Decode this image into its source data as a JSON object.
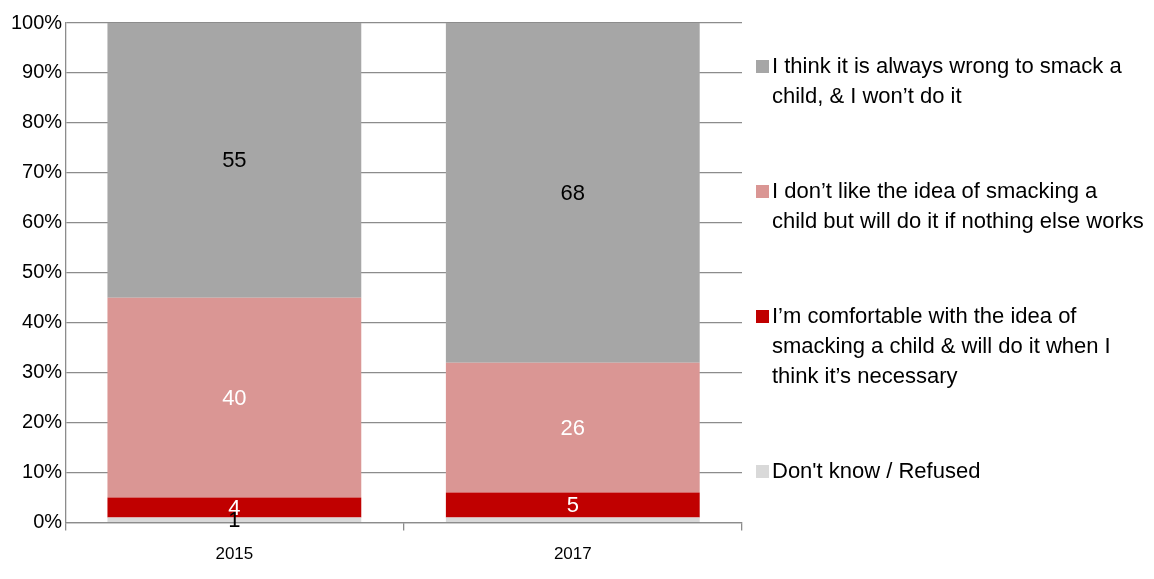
{
  "chart_data": {
    "type": "bar",
    "stacked": true,
    "categories": [
      "2015",
      "2017"
    ],
    "series": [
      {
        "name": "Don't know / Refused",
        "color": "#d9d9d9",
        "values": [
          1,
          1
        ],
        "value_labels": [
          "1",
          null
        ]
      },
      {
        "name": "I’m comfortable with the idea of smacking a child & will do it when I think it’s necessary",
        "color": "#c00000",
        "values": [
          4,
          5
        ],
        "value_labels": [
          "4",
          "5"
        ]
      },
      {
        "name": "I don’t like the idea of smacking a child but will do it if nothing else works",
        "color": "#da9694",
        "values": [
          40,
          26
        ],
        "value_labels": [
          "40",
          "26"
        ]
      },
      {
        "name": "I think it is always wrong to smack a child, & I won’t do it",
        "color": "#a6a6a6",
        "values": [
          55,
          68
        ],
        "value_labels": [
          "55",
          "68"
        ]
      }
    ],
    "ylim": [
      0,
      100
    ],
    "yticks": [
      {
        "value": 0,
        "label": "0%"
      },
      {
        "value": 10,
        "label": "10%"
      },
      {
        "value": 20,
        "label": "20%"
      },
      {
        "value": 30,
        "label": "30%"
      },
      {
        "value": 40,
        "label": "40%"
      },
      {
        "value": 50,
        "label": "50%"
      },
      {
        "value": 60,
        "label": "60%"
      },
      {
        "value": 70,
        "label": "70%"
      },
      {
        "value": 80,
        "label": "80%"
      },
      {
        "value": 90,
        "label": "90%"
      },
      {
        "value": 100,
        "label": "100%"
      }
    ],
    "grid": "y",
    "legend": "right"
  }
}
